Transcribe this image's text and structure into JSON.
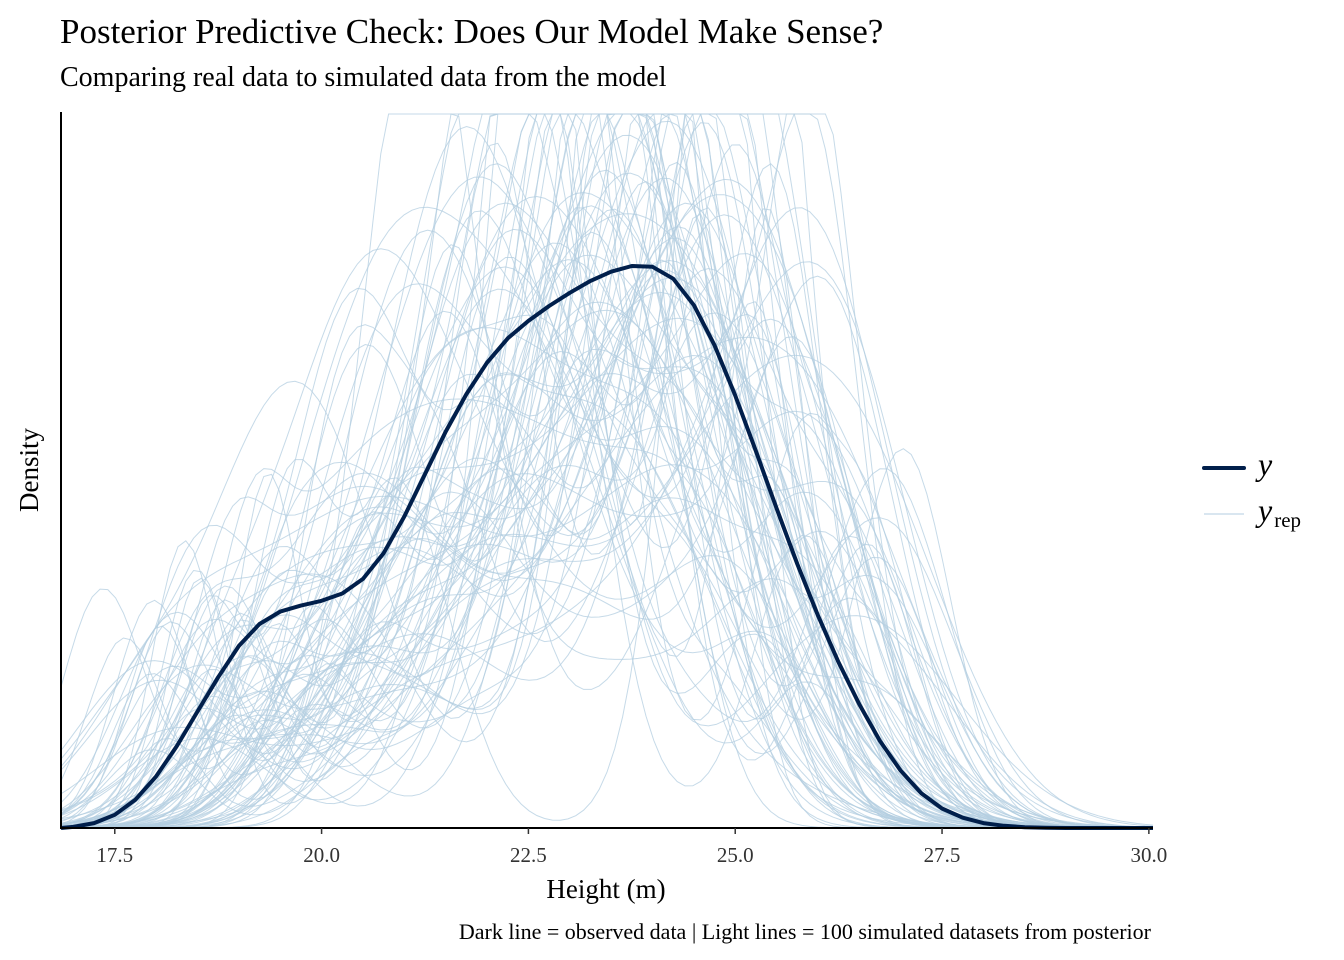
{
  "chart_data": {
    "type": "line",
    "title": "Posterior Predictive Check: Does Our Model Make Sense?",
    "subtitle": "Comparing real data to simulated data from the model",
    "xlabel": "Height (m)",
    "ylabel": "Density",
    "caption": "Dark line = observed data | Light lines = 100 simulated datasets from posterior",
    "xlim": [
      16.85,
      30.05
    ],
    "ylim": [
      0,
      0.265
    ],
    "xticks": [
      17.5,
      20.0,
      22.5,
      25.0,
      27.5,
      30.0
    ],
    "xtick_labels": [
      "17.5",
      "20.0",
      "22.5",
      "25.0",
      "27.5",
      "30.0"
    ],
    "y_ticks_shown": false,
    "n_simulated": 100,
    "colors": {
      "observed": "#011f4b",
      "simulated": "#b3cde0"
    },
    "legend": {
      "position": "right",
      "entries": [
        {
          "label": "y",
          "subscript": "",
          "series": "observed"
        },
        {
          "label": "y",
          "subscript": "rep",
          "series": "simulated"
        }
      ]
    },
    "observed_density": {
      "x": [
        16.85,
        17.0,
        17.25,
        17.5,
        17.75,
        18.0,
        18.25,
        18.5,
        18.75,
        19.0,
        19.25,
        19.5,
        19.75,
        20.0,
        20.25,
        20.5,
        20.75,
        21.0,
        21.25,
        21.5,
        21.75,
        22.0,
        22.25,
        22.5,
        22.75,
        23.0,
        23.25,
        23.5,
        23.75,
        24.0,
        24.25,
        24.5,
        24.75,
        25.0,
        25.25,
        25.5,
        25.75,
        26.0,
        26.25,
        26.5,
        26.75,
        27.0,
        27.25,
        27.5,
        27.75,
        28.0,
        28.25,
        28.5,
        28.75,
        29.0,
        29.5,
        30.05
      ],
      "density": [
        0.0,
        0.0004,
        0.0018,
        0.0049,
        0.0105,
        0.0191,
        0.0303,
        0.0431,
        0.0558,
        0.0674,
        0.0755,
        0.0801,
        0.0823,
        0.0841,
        0.0868,
        0.0922,
        0.1017,
        0.1153,
        0.131,
        0.1467,
        0.1606,
        0.1722,
        0.1812,
        0.1877,
        0.1932,
        0.1981,
        0.2025,
        0.2059,
        0.208,
        0.2077,
        0.2033,
        0.1935,
        0.1787,
        0.1601,
        0.1395,
        0.1183,
        0.0977,
        0.0786,
        0.0613,
        0.0458,
        0.0322,
        0.0212,
        0.0128,
        0.0072,
        0.0038,
        0.0018,
        0.0008,
        0.0003,
        0.0001,
        0.0,
        0.0,
        0.0
      ]
    }
  }
}
